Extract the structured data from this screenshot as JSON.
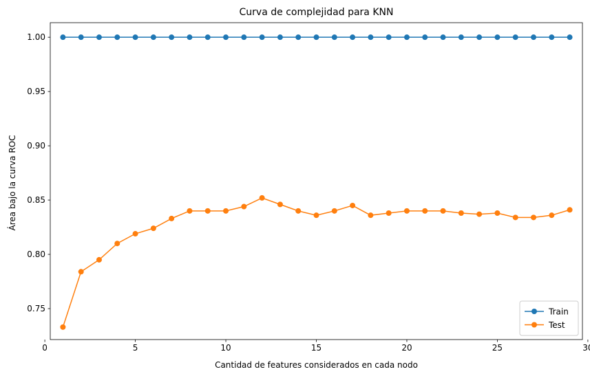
{
  "chart_data": {
    "type": "line",
    "title": "Curva de complejidad para KNN",
    "xlabel": "Cantidad de features considerados en cada nodo",
    "ylabel": "Área bajo la curva ROC",
    "xlim": [
      0.3,
      29.7
    ],
    "ylim": [
      0.7215,
      1.0134
    ],
    "xticks": [
      0,
      5,
      10,
      15,
      20,
      25,
      30
    ],
    "yticks": [
      0.75,
      0.8,
      0.85,
      0.9,
      0.95,
      1.0
    ],
    "grid": false,
    "legend_position": "lower-right",
    "x": [
      1,
      2,
      3,
      4,
      5,
      6,
      7,
      8,
      9,
      10,
      11,
      12,
      13,
      14,
      15,
      16,
      17,
      18,
      19,
      20,
      21,
      22,
      23,
      24,
      25,
      26,
      27,
      28,
      29
    ],
    "series": [
      {
        "name": "Train",
        "color": "#1f77b4",
        "marker": "circle",
        "values": [
          1.0,
          1.0,
          1.0,
          1.0,
          1.0,
          1.0,
          1.0,
          1.0,
          1.0,
          1.0,
          1.0,
          1.0,
          1.0,
          1.0,
          1.0,
          1.0,
          1.0,
          1.0,
          1.0,
          1.0,
          1.0,
          1.0,
          1.0,
          1.0,
          1.0,
          1.0,
          1.0,
          1.0,
          1.0
        ]
      },
      {
        "name": "Test",
        "color": "#ff7f0e",
        "marker": "circle",
        "values": [
          0.733,
          0.784,
          0.795,
          0.81,
          0.819,
          0.824,
          0.833,
          0.84,
          0.84,
          0.84,
          0.844,
          0.852,
          0.846,
          0.84,
          0.836,
          0.84,
          0.845,
          0.836,
          0.838,
          0.84,
          0.84,
          0.84,
          0.838,
          0.837,
          0.838,
          0.834,
          0.834,
          0.836,
          0.841
        ]
      }
    ]
  }
}
